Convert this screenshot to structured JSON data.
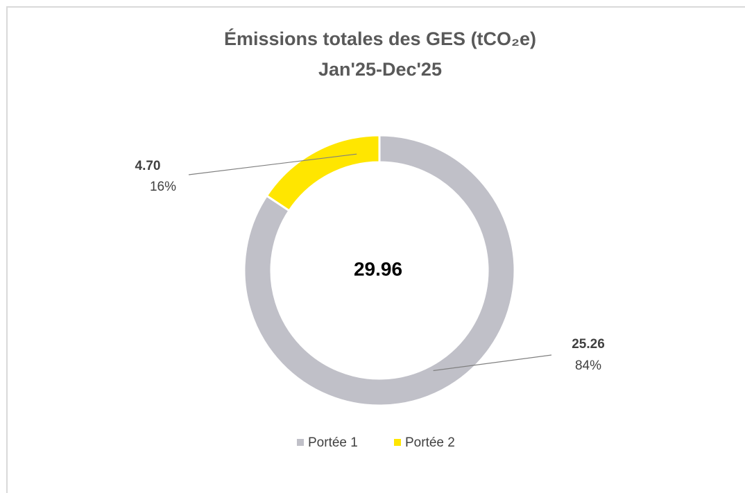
{
  "chart_data": {
    "type": "donut",
    "title": "Émissions totales des GES (tCO₂e)",
    "subtitle": "Jan'25-Dec'25",
    "center_label": "29.96",
    "categories": [
      "Portée 1",
      "Portée 2"
    ],
    "values": [
      25.26,
      4.7
    ],
    "value_labels": [
      "25.26",
      "4.70"
    ],
    "percents": [
      84,
      16
    ],
    "percent_labels": [
      "84%",
      "16%"
    ],
    "colors": [
      "#c0c0c8",
      "#ffe600"
    ],
    "legend": "bottom"
  }
}
